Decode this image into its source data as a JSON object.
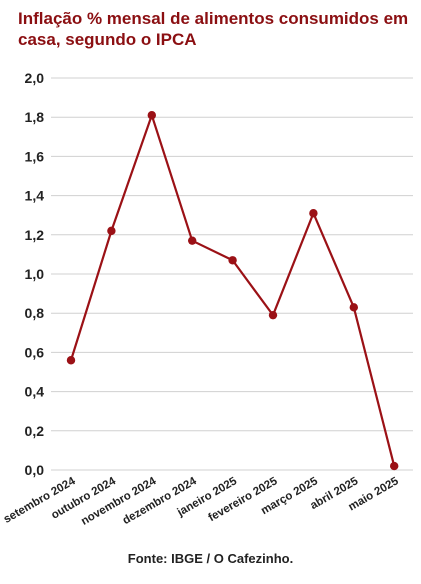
{
  "chart_data": {
    "type": "line",
    "title": "Inflação % mensal de alimentos consumidos em casa, segundo o IPCA",
    "source": "Fonte: IBGE / O Cafezinho.",
    "categories": [
      "setembro 2024",
      "outubro 2024",
      "novembro 2024",
      "dezembro 2024",
      "janeiro 2025",
      "fevereiro 2025",
      "março 2025",
      "abril 2025",
      "maio 2025"
    ],
    "series": [
      {
        "values": [
          0.56,
          1.22,
          1.81,
          1.17,
          1.07,
          0.79,
          1.31,
          0.83,
          0.02
        ]
      }
    ],
    "ylim": [
      0,
      2.0
    ],
    "yticks": [
      "0,0",
      "0,2",
      "0,4",
      "0,6",
      "0,8",
      "1,0",
      "1,2",
      "1,4",
      "1,6",
      "1,8",
      "2,0"
    ],
    "grid": true,
    "legend": "none",
    "colors": {
      "title": "#8b0f12",
      "line": "#9b1116",
      "grid": "#d0d0d0",
      "axis_text": "#222222"
    }
  }
}
